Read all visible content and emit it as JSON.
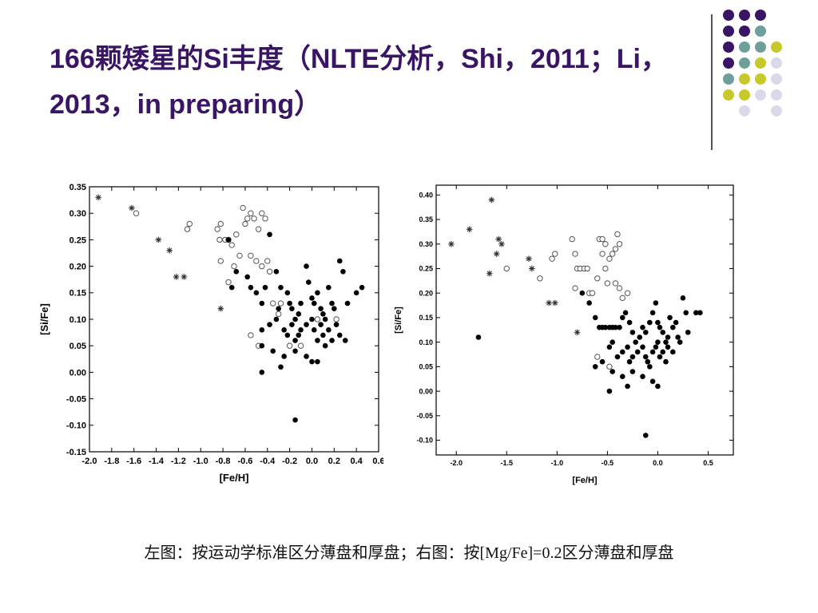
{
  "slide": {
    "title": "166颗矮星的Si丰度（NLTE分析，Shi，2011；Li，2013，in preparing）",
    "caption": "左图：按运动学标准区分薄盘和厚盘；右图：按[Mg/Fe]=0.2区分薄盘和厚盘"
  },
  "decor": {
    "colors": [
      "#3a1566",
      "#6f9f9b",
      "#c7c82a",
      "#d9d9ea"
    ],
    "grid": [
      [
        "purple",
        "purple",
        "purple",
        null
      ],
      [
        "purple",
        "purple",
        "teal",
        null
      ],
      [
        "purple",
        "teal",
        "teal",
        "yellow"
      ],
      [
        "purple",
        "teal",
        "yellow",
        "lavender"
      ],
      [
        "teal",
        "yellow",
        "yellow",
        "lavender"
      ],
      [
        "yellow",
        "yellow",
        "lavender",
        "lavender"
      ],
      [
        null,
        "lavender",
        null,
        "lavender"
      ]
    ]
  },
  "chart_data": [
    {
      "type": "scatter",
      "title": "",
      "xlabel": "[Fe/H]",
      "ylabel": "[Si/Fe]",
      "xlim": [
        -2.0,
        0.6
      ],
      "ylim": [
        -0.15,
        0.35
      ],
      "xticks": [
        "-2.0",
        "-1.8",
        "-1.6",
        "-1.4",
        "-1.2",
        "-1.0",
        "-0.8",
        "-0.6",
        "-0.4",
        "-0.2",
        "0.0",
        "0.2",
        "0.4",
        "0.6"
      ],
      "yticks": [
        "-0.15",
        "-0.10",
        "-0.05",
        "0.00",
        "0.05",
        "0.10",
        "0.15",
        "0.20",
        "0.25",
        "0.30",
        "0.35"
      ],
      "series": [
        {
          "marker": "star",
          "points": [
            [
              -1.92,
              0.33
            ],
            [
              -1.62,
              0.31
            ],
            [
              -1.38,
              0.25
            ],
            [
              -1.28,
              0.23
            ],
            [
              -1.22,
              0.18
            ],
            [
              -1.15,
              0.18
            ],
            [
              -0.82,
              0.12
            ]
          ]
        },
        {
          "marker": "open",
          "points": [
            [
              -1.58,
              0.3
            ],
            [
              -1.12,
              0.27
            ],
            [
              -1.1,
              0.28
            ],
            [
              -0.85,
              0.27
            ],
            [
              -0.82,
              0.28
            ],
            [
              -0.83,
              0.25
            ],
            [
              -0.78,
              0.25
            ],
            [
              -0.75,
              0.25
            ],
            [
              -0.72,
              0.24
            ],
            [
              -0.68,
              0.26
            ],
            [
              -0.62,
              0.31
            ],
            [
              -0.6,
              0.28
            ],
            [
              -0.58,
              0.29
            ],
            [
              -0.55,
              0.3
            ],
            [
              -0.52,
              0.29
            ],
            [
              -0.48,
              0.27
            ],
            [
              -0.45,
              0.3
            ],
            [
              -0.42,
              0.29
            ],
            [
              -0.65,
              0.22
            ],
            [
              -0.7,
              0.2
            ],
            [
              -0.75,
              0.17
            ],
            [
              -0.82,
              0.21
            ],
            [
              -0.55,
              0.22
            ],
            [
              -0.5,
              0.21
            ],
            [
              -0.45,
              0.2
            ],
            [
              -0.4,
              0.21
            ],
            [
              -0.38,
              0.19
            ],
            [
              -0.35,
              0.13
            ],
            [
              -0.3,
              0.11
            ],
            [
              -0.28,
              0.13
            ],
            [
              -0.55,
              0.07
            ],
            [
              -0.48,
              0.05
            ],
            [
              -0.2,
              0.05
            ],
            [
              -0.1,
              0.05
            ],
            [
              0.05,
              0.1
            ],
            [
              0.22,
              0.1
            ]
          ]
        },
        {
          "marker": "filled",
          "points": [
            [
              -0.75,
              0.25
            ],
            [
              -0.68,
              0.19
            ],
            [
              -0.72,
              0.16
            ],
            [
              -0.58,
              0.18
            ],
            [
              -0.55,
              0.16
            ],
            [
              -0.5,
              0.15
            ],
            [
              -0.45,
              0.13
            ],
            [
              -0.42,
              0.16
            ],
            [
              -0.38,
              0.26
            ],
            [
              -0.32,
              0.19
            ],
            [
              -0.28,
              0.16
            ],
            [
              -0.22,
              0.15
            ],
            [
              -0.2,
              0.13
            ],
            [
              -0.18,
              0.12
            ],
            [
              -0.15,
              0.1
            ],
            [
              -0.12,
              0.11
            ],
            [
              -0.1,
              0.13
            ],
            [
              -0.05,
              0.2
            ],
            [
              -0.03,
              0.17
            ],
            [
              0.0,
              0.14
            ],
            [
              0.02,
              0.13
            ],
            [
              0.05,
              0.15
            ],
            [
              0.08,
              0.12
            ],
            [
              0.1,
              0.11
            ],
            [
              0.12,
              0.1
            ],
            [
              0.15,
              0.16
            ],
            [
              0.18,
              0.13
            ],
            [
              0.2,
              0.12
            ],
            [
              0.25,
              0.21
            ],
            [
              0.28,
              0.19
            ],
            [
              0.32,
              0.13
            ],
            [
              0.4,
              0.15
            ],
            [
              0.45,
              0.16
            ],
            [
              -0.45,
              0.08
            ],
            [
              -0.38,
              0.09
            ],
            [
              -0.32,
              0.1
            ],
            [
              -0.3,
              0.12
            ],
            [
              -0.25,
              0.08
            ],
            [
              -0.22,
              0.07
            ],
            [
              -0.18,
              0.09
            ],
            [
              -0.15,
              0.06
            ],
            [
              -0.12,
              0.07
            ],
            [
              -0.1,
              0.08
            ],
            [
              -0.05,
              0.09
            ],
            [
              0.0,
              0.1
            ],
            [
              0.02,
              0.08
            ],
            [
              0.05,
              0.06
            ],
            [
              0.08,
              0.09
            ],
            [
              0.1,
              0.07
            ],
            [
              0.12,
              0.05
            ],
            [
              0.15,
              0.08
            ],
            [
              0.18,
              0.06
            ],
            [
              0.22,
              0.09
            ],
            [
              0.25,
              0.07
            ],
            [
              0.3,
              0.06
            ],
            [
              -0.45,
              0.05
            ],
            [
              -0.35,
              0.04
            ],
            [
              -0.25,
              0.03
            ],
            [
              -0.15,
              0.04
            ],
            [
              -0.05,
              0.03
            ],
            [
              0.0,
              0.02
            ],
            [
              0.05,
              0.02
            ],
            [
              -0.28,
              0.01
            ],
            [
              -0.45,
              0.0
            ],
            [
              -0.15,
              -0.09
            ]
          ]
        }
      ]
    },
    {
      "type": "scatter",
      "title": "",
      "xlabel": "[Fe/H]",
      "ylabel": "[Si/Fe]",
      "xlim": [
        -2.2,
        0.75
      ],
      "ylim": [
        -0.13,
        0.42
      ],
      "xticks": [
        "-2.0",
        "-1.5",
        "-1.0",
        "-0.5",
        "0.0",
        "0.5"
      ],
      "xtick_values": [
        -2.0,
        -1.5,
        -1.0,
        -0.5,
        0.0,
        0.5
      ],
      "yticks": [
        "-0.10",
        "-0.05",
        "0.00",
        "0.05",
        "0.10",
        "0.15",
        "0.20",
        "0.25",
        "0.30",
        "0.35",
        "0.40"
      ],
      "series": [
        {
          "marker": "star",
          "points": [
            [
              -2.05,
              0.3
            ],
            [
              -1.87,
              0.33
            ],
            [
              -1.65,
              0.39
            ],
            [
              -1.58,
              0.31
            ],
            [
              -1.55,
              0.3
            ],
            [
              -1.6,
              0.28
            ],
            [
              -1.67,
              0.24
            ],
            [
              -1.28,
              0.27
            ],
            [
              -1.25,
              0.25
            ],
            [
              -1.08,
              0.18
            ],
            [
              -1.02,
              0.18
            ],
            [
              -0.8,
              0.12
            ]
          ]
        },
        {
          "marker": "open",
          "points": [
            [
              -1.5,
              0.25
            ],
            [
              -1.17,
              0.23
            ],
            [
              -1.05,
              0.27
            ],
            [
              -1.02,
              0.28
            ],
            [
              -0.85,
              0.31
            ],
            [
              -0.82,
              0.28
            ],
            [
              -0.8,
              0.25
            ],
            [
              -0.77,
              0.25
            ],
            [
              -0.73,
              0.25
            ],
            [
              -0.7,
              0.25
            ],
            [
              -0.68,
              0.2
            ],
            [
              -0.65,
              0.2
            ],
            [
              -0.6,
              0.23
            ],
            [
              -0.58,
              0.31
            ],
            [
              -0.55,
              0.31
            ],
            [
              -0.52,
              0.3
            ],
            [
              -0.55,
              0.28
            ],
            [
              -0.52,
              0.25
            ],
            [
              -0.5,
              0.22
            ],
            [
              -0.48,
              0.27
            ],
            [
              -0.45,
              0.28
            ],
            [
              -0.42,
              0.29
            ],
            [
              -0.4,
              0.32
            ],
            [
              -0.38,
              0.3
            ],
            [
              -0.42,
              0.22
            ],
            [
              -0.38,
              0.21
            ],
            [
              -0.35,
              0.19
            ],
            [
              -0.3,
              0.2
            ],
            [
              -0.6,
              0.07
            ],
            [
              -0.82,
              0.21
            ],
            [
              -0.48,
              0.05
            ]
          ]
        },
        {
          "marker": "filled",
          "points": [
            [
              -1.78,
              0.11
            ],
            [
              -0.75,
              0.2
            ],
            [
              -0.68,
              0.18
            ],
            [
              -0.62,
              0.15
            ],
            [
              -0.58,
              0.13
            ],
            [
              -0.55,
              0.13
            ],
            [
              -0.52,
              0.13
            ],
            [
              -0.48,
              0.13
            ],
            [
              -0.45,
              0.13
            ],
            [
              -0.42,
              0.13
            ],
            [
              -0.38,
              0.13
            ],
            [
              -0.35,
              0.15
            ],
            [
              -0.32,
              0.16
            ],
            [
              -0.28,
              0.14
            ],
            [
              -0.25,
              0.12
            ],
            [
              -0.22,
              0.1
            ],
            [
              -0.18,
              0.11
            ],
            [
              -0.15,
              0.13
            ],
            [
              -0.12,
              0.12
            ],
            [
              -0.08,
              0.14
            ],
            [
              -0.05,
              0.16
            ],
            [
              -0.02,
              0.18
            ],
            [
              0.0,
              0.14
            ],
            [
              0.02,
              0.13
            ],
            [
              0.05,
              0.12
            ],
            [
              0.08,
              0.1
            ],
            [
              0.1,
              0.11
            ],
            [
              0.12,
              0.15
            ],
            [
              0.15,
              0.13
            ],
            [
              0.18,
              0.14
            ],
            [
              0.22,
              0.1
            ],
            [
              0.25,
              0.19
            ],
            [
              0.28,
              0.16
            ],
            [
              0.3,
              0.12
            ],
            [
              0.38,
              0.16
            ],
            [
              0.42,
              0.16
            ],
            [
              -0.62,
              0.05
            ],
            [
              -0.55,
              0.06
            ],
            [
              -0.48,
              0.09
            ],
            [
              -0.45,
              0.1
            ],
            [
              -0.4,
              0.07
            ],
            [
              -0.35,
              0.08
            ],
            [
              -0.3,
              0.09
            ],
            [
              -0.28,
              0.06
            ],
            [
              -0.25,
              0.07
            ],
            [
              -0.2,
              0.08
            ],
            [
              -0.15,
              0.09
            ],
            [
              -0.12,
              0.07
            ],
            [
              -0.1,
              0.06
            ],
            [
              -0.08,
              0.05
            ],
            [
              -0.05,
              0.08
            ],
            [
              -0.02,
              0.09
            ],
            [
              0.0,
              0.1
            ],
            [
              0.02,
              0.07
            ],
            [
              0.05,
              0.08
            ],
            [
              0.08,
              0.06
            ],
            [
              0.1,
              0.09
            ],
            [
              0.15,
              0.08
            ],
            [
              0.2,
              0.11
            ],
            [
              -0.45,
              0.04
            ],
            [
              -0.35,
              0.03
            ],
            [
              -0.25,
              0.04
            ],
            [
              -0.15,
              0.03
            ],
            [
              -0.05,
              0.02
            ],
            [
              0.0,
              0.01
            ],
            [
              -0.3,
              0.01
            ],
            [
              -0.48,
              0.0
            ],
            [
              -0.12,
              -0.09
            ]
          ]
        }
      ]
    }
  ]
}
